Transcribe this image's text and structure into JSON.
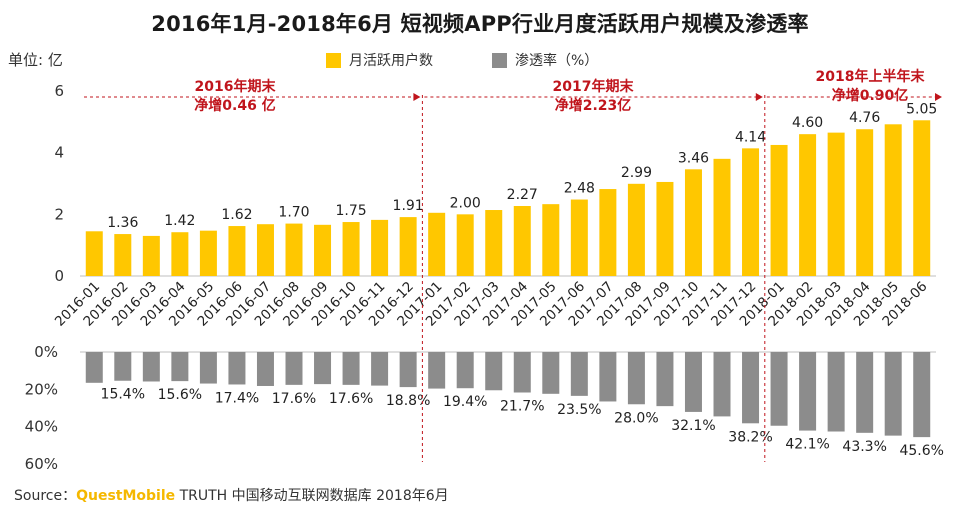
{
  "chart_data": {
    "type": "bar",
    "title": "2016年1月-2018年6月 短视频APP行业月度活跃用户规模及渗透率",
    "unit_label": "单位: 亿",
    "categories": [
      "2016-01",
      "2016-02",
      "2016-03",
      "2016-04",
      "2016-05",
      "2016-06",
      "2016-07",
      "2016-08",
      "2016-09",
      "2016-10",
      "2016-11",
      "2016-12",
      "2017-01",
      "2017-02",
      "2017-03",
      "2017-04",
      "2017-05",
      "2017-06",
      "2017-07",
      "2017-08",
      "2017-09",
      "2017-10",
      "2017-11",
      "2017-12",
      "2018-01",
      "2018-02",
      "2018-03",
      "2018-04",
      "2018-05",
      "2018-06"
    ],
    "series": [
      {
        "name": "月活跃用户数",
        "color": "#FFC700",
        "values": [
          1.45,
          1.36,
          1.3,
          1.42,
          1.47,
          1.62,
          1.68,
          1.7,
          1.66,
          1.75,
          1.82,
          1.91,
          2.05,
          2.0,
          2.14,
          2.27,
          2.33,
          2.48,
          2.82,
          2.99,
          3.05,
          3.46,
          3.8,
          4.14,
          4.25,
          4.6,
          4.65,
          4.76,
          4.92,
          5.05
        ],
        "labels": [
          "",
          "1.36",
          "",
          "1.42",
          "",
          "1.62",
          "",
          "1.70",
          "",
          "1.75",
          "",
          "1.91",
          "",
          "2.00",
          "",
          "2.27",
          "",
          "2.48",
          "",
          "2.99",
          "",
          "3.46",
          "",
          "4.14",
          "",
          "4.60",
          "",
          "4.76",
          "",
          "5.05"
        ],
        "ylim": [
          0,
          6
        ],
        "yticks": [
          "0",
          "2",
          "4",
          "6"
        ]
      },
      {
        "name": "渗透率（%）",
        "color": "#8C8C8C",
        "values": [
          16.5,
          15.4,
          15.8,
          15.6,
          16.9,
          17.4,
          18.2,
          17.6,
          17.2,
          17.6,
          18.0,
          18.8,
          19.6,
          19.4,
          20.5,
          21.7,
          22.4,
          23.5,
          26.5,
          28.0,
          29.0,
          32.1,
          34.5,
          38.2,
          39.5,
          42.1,
          42.6,
          43.3,
          44.8,
          45.6
        ],
        "labels": [
          "",
          "15.4%",
          "",
          "15.6%",
          "",
          "17.4%",
          "",
          "17.6%",
          "",
          "17.6%",
          "",
          "18.8%",
          "",
          "19.4%",
          "",
          "21.7%",
          "",
          "23.5%",
          "",
          "28.0%",
          "",
          "32.1%",
          "",
          "38.2%",
          "",
          "42.1%",
          "",
          "43.3%",
          "",
          "45.6%"
        ],
        "ylim": [
          0,
          60
        ],
        "yticks": [
          "0%",
          "20%",
          "40%",
          "60%"
        ]
      }
    ],
    "annotations": [
      {
        "line1": "2016年期末",
        "line2": "净增0.46 亿"
      },
      {
        "line1": "2017年期末",
        "line2": "净增2.23亿"
      },
      {
        "line1": "2018年上半年末",
        "line2": "净增0.90亿"
      }
    ]
  },
  "source": {
    "prefix": "Source：",
    "brand": "QuestMobile",
    "rest": " TRUTH 中国移动互联网数据库 2018年6月"
  }
}
